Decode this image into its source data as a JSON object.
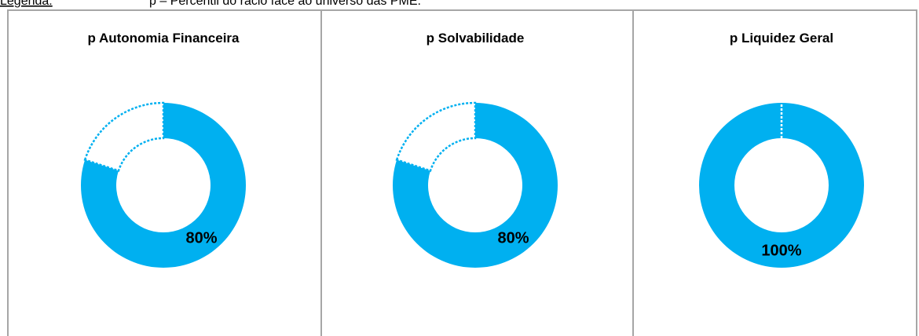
{
  "header": {
    "legend_label": "Legenda:",
    "legend_text": "p – Percentil do rácio face ao universo das PME."
  },
  "chart_data": [
    {
      "type": "pie",
      "title": "p Autonomia Financeira",
      "values": [
        80,
        20
      ],
      "value_labels": [
        "80%",
        null
      ],
      "color": "#00b0f0"
    },
    {
      "type": "pie",
      "title": "p Solvabilidade",
      "values": [
        80,
        20
      ],
      "value_labels": [
        "80%",
        null
      ],
      "color": "#00b0f0"
    },
    {
      "type": "pie",
      "title": "p Liquidez Geral",
      "values": [
        100,
        0
      ],
      "value_labels": [
        "100%",
        null
      ],
      "color": "#00b0f0"
    }
  ]
}
